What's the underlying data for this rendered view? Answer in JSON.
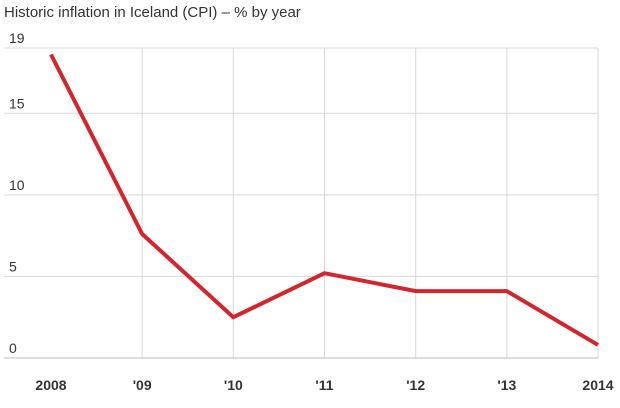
{
  "chart_data": {
    "type": "line",
    "title": "Historic inflation in Iceland (CPI) – % by year",
    "xlabel": "",
    "ylabel": "",
    "categories": [
      "2008",
      "'09",
      "'10",
      "'11",
      "'12",
      "'13",
      "2014"
    ],
    "series": [
      {
        "values": [
          18.6,
          7.6,
          2.5,
          5.2,
          4.1,
          4.1,
          0.8
        ],
        "color": "#d1262e"
      }
    ],
    "ylim": [
      0,
      19
    ],
    "yticks": [
      0,
      5,
      10,
      15,
      19
    ],
    "grid": true,
    "legend": "none",
    "colors": {
      "grid": "#d9d9d9",
      "baseline": "#bdbdbd",
      "text": "#333333",
      "line": "#d1262e"
    }
  }
}
